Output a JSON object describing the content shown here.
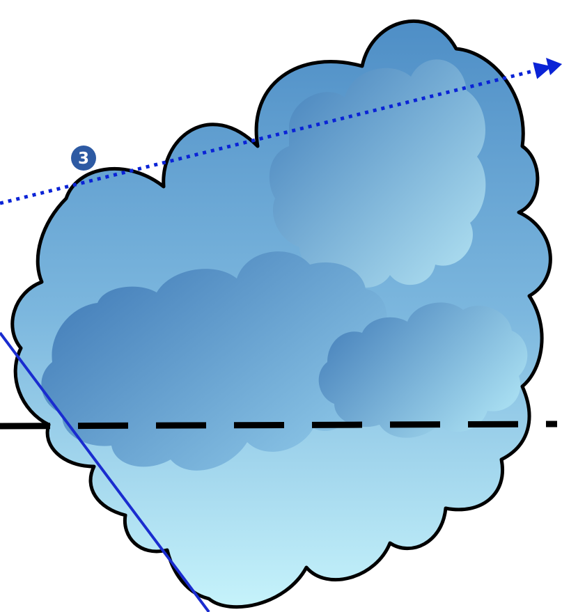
{
  "markers": [
    {
      "label": "3"
    }
  ],
  "colors": {
    "cloud_outline": "#000000",
    "cloud_top": "#4e8ec6",
    "cloud_bottom": "#c6f3fb",
    "inner_cloud_dark": "#3f7cb9",
    "inner_cloud_light": "#b5e5f4",
    "dotted_path": "#0a23d6",
    "solid_path": "#1a2ccf",
    "dashed_line": "#000000",
    "marker_fill": "#2d5aa3",
    "marker_text": "#ffffff"
  }
}
